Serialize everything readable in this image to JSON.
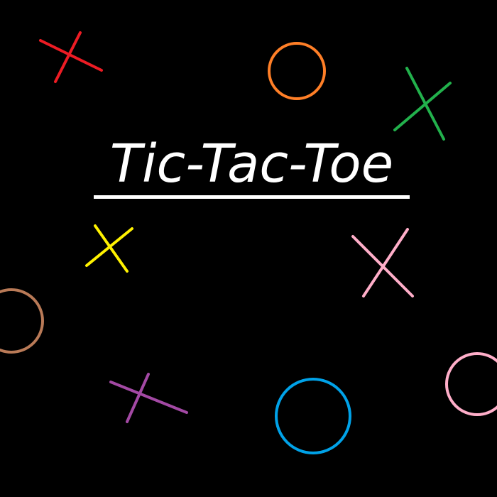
{
  "title": "Tic-Tac-Toe",
  "background_color": "#000000",
  "title_color": "#ffffff",
  "marks": [
    {
      "type": "x",
      "color": "#ed1c24"
    },
    {
      "type": "o",
      "color": "#ff7f27"
    },
    {
      "type": "x",
      "color": "#22b14c"
    },
    {
      "type": "x",
      "color": "#fff200"
    },
    {
      "type": "x",
      "color": "#ffaec9"
    },
    {
      "type": "o",
      "color": "#b97a57"
    },
    {
      "type": "x",
      "color": "#a349a4"
    },
    {
      "type": "o",
      "color": "#00a2e8"
    },
    {
      "type": "o",
      "color": "#ffaec9"
    }
  ]
}
